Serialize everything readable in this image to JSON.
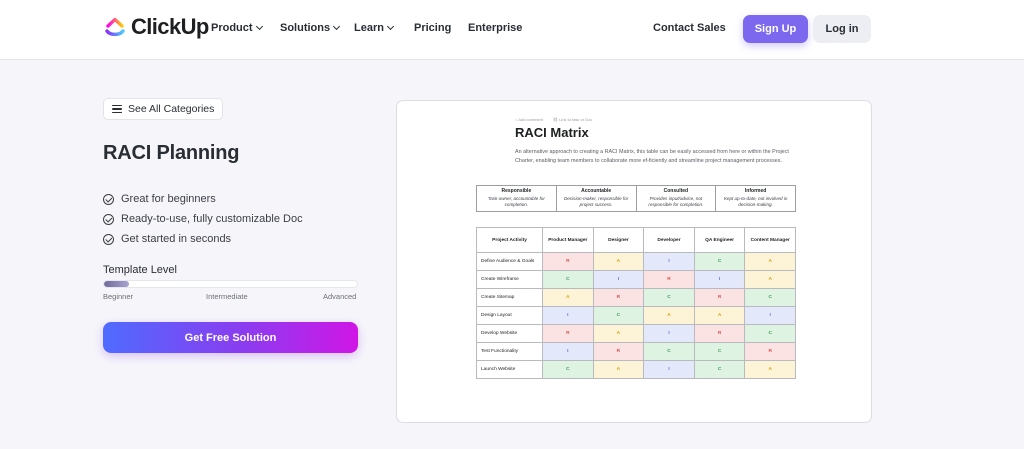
{
  "header": {
    "logo_text": "ClickUp",
    "nav": [
      {
        "label": "Product",
        "dropdown": true
      },
      {
        "label": "Solutions",
        "dropdown": true
      },
      {
        "label": "Learn",
        "dropdown": true
      },
      {
        "label": "Pricing",
        "dropdown": false
      },
      {
        "label": "Enterprise",
        "dropdown": false
      }
    ],
    "contact_label": "Contact Sales",
    "signup_label": "Sign Up",
    "login_label": "Log in"
  },
  "sidebar": {
    "categories_label": "See All Categories",
    "title": "RACI Planning",
    "features": [
      "Great for beginners",
      "Ready-to-use, fully customizable Doc",
      "Get started in seconds"
    ],
    "level_label": "Template Level",
    "level_value": 0.1,
    "levels": [
      "Beginner",
      "Intermediate",
      "Advanced"
    ],
    "cta_label": "Get Free Solution"
  },
  "preview": {
    "actions": [
      "Add comment",
      "Link to task or Doc"
    ],
    "title": "RACI Matrix",
    "description": "An alternative approach to creating a RACI Matrix, this table can be easily accessed from here or within the Project Charter, enabling team members to collaborate more ef-ficiently and streamline project management processes.",
    "legend": [
      {
        "heading": "Responsible",
        "text": "Task owner, accountable for completion."
      },
      {
        "heading": "Accountable",
        "text": "Decision-maker, responsible for project success."
      },
      {
        "heading": "Consulted",
        "text": "Provides input/advice, not responsible for completion."
      },
      {
        "heading": "Informed",
        "text": "Kept up-to-date, not involved in decision-making."
      }
    ],
    "columns": [
      "Project Activity",
      "Product Manager",
      "Designer",
      "Developer",
      "QA Engineer",
      "Content Manager"
    ],
    "rows": [
      {
        "activity": "Define Audience & Goals",
        "values": [
          "R",
          "A",
          "I",
          "C",
          "A"
        ]
      },
      {
        "activity": "Create Wireframe",
        "values": [
          "C",
          "I",
          "R",
          "I",
          "A"
        ]
      },
      {
        "activity": "Create Sitemap",
        "values": [
          "A",
          "R",
          "C",
          "R",
          "C"
        ]
      },
      {
        "activity": "Design Layout",
        "values": [
          "I",
          "C",
          "A",
          "A",
          "I"
        ]
      },
      {
        "activity": "Develop Website",
        "values": [
          "R",
          "A",
          "I",
          "R",
          "C"
        ]
      },
      {
        "activity": "Test Functionality",
        "values": [
          "I",
          "R",
          "C",
          "C",
          "R"
        ]
      },
      {
        "activity": "Launch Website",
        "values": [
          "C",
          "A",
          "I",
          "C",
          "A"
        ]
      }
    ]
  },
  "colors": {
    "brand_purple": "#7b68ee",
    "cta_gradient": [
      "#4f6bff",
      "#8b3cf0",
      "#d016e6"
    ],
    "R": "#d9534f",
    "A": "#d8a112",
    "I": "#5b6fd0",
    "C": "#3a9a58"
  }
}
